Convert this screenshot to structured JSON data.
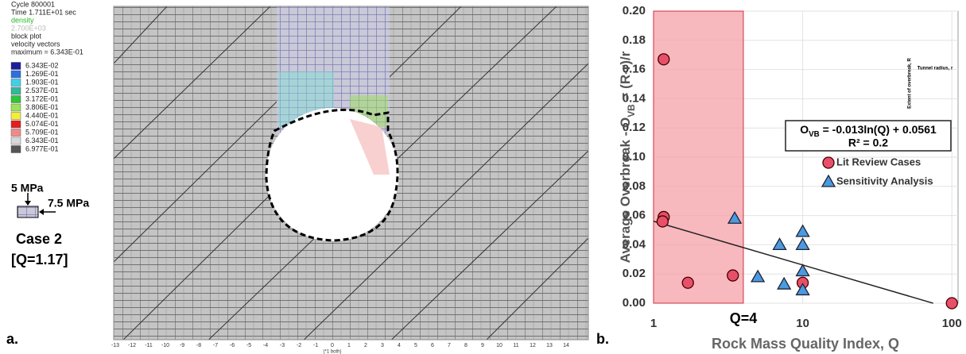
{
  "panel_a": {
    "label": "a.",
    "header": [
      "Cycle  800001",
      "Time  1.711E+01 sec",
      "density",
      "2.700E+03",
      "block plot",
      "velocity vectors",
      "maximum =   6.343E-01"
    ],
    "legend": [
      {
        "label": "6.343E-02",
        "color": "#1c1c9c"
      },
      {
        "label": "1.269E-01",
        "color": "#2f6fe0"
      },
      {
        "label": "1.903E-01",
        "color": "#3fd0e8"
      },
      {
        "label": "2.537E-01",
        "color": "#33b89a"
      },
      {
        "label": "3.172E-01",
        "color": "#2fc43a"
      },
      {
        "label": "3.806E-01",
        "color": "#9ee05a"
      },
      {
        "label": "4.440E-01",
        "color": "#f2ee3a"
      },
      {
        "label": "5.074E-01",
        "color": "#e02020"
      },
      {
        "label": "5.709E-01",
        "color": "#f08a8a"
      },
      {
        "label": "6.343E-01",
        "color": "#d8d8d8"
      },
      {
        "label": "6.977E-01",
        "color": "#555555"
      }
    ],
    "stress_vertical": "5 MPa",
    "stress_horizontal": "7.5 MPa",
    "case": "Case 2",
    "q": "[Q=1.17]",
    "axis_ticks": [
      -13,
      -12,
      -11,
      -10,
      -9,
      -8,
      -7,
      -6,
      -5,
      -4,
      -3,
      -2,
      -1,
      0,
      1,
      2,
      3,
      4,
      5,
      6,
      7,
      8,
      9,
      10,
      11,
      12,
      13,
      14
    ],
    "axis_note": "(*1 both)"
  },
  "chart_data": {
    "type": "scatter",
    "panel_label": "b.",
    "x_label": "Rock Mass Quality Index, Q",
    "y_label": [
      "Average Overbreak - O",
      "VB",
      " = (R-r)/r"
    ],
    "log_x": true,
    "xlim": [
      1,
      110
    ],
    "xticks": [
      1,
      10,
      100
    ],
    "ylim": [
      0,
      0.2
    ],
    "yticks": [
      {
        "value": 0,
        "label": "0.00"
      },
      {
        "value": 0.02,
        "label": "0.02"
      },
      {
        "value": 0.04,
        "label": "0.04"
      },
      {
        "value": 0.06,
        "label": "0.06"
      },
      {
        "value": 0.08,
        "label": "0.08"
      },
      {
        "value": 0.1,
        "label": "0.10"
      },
      {
        "value": 0.12,
        "label": "0.12"
      },
      {
        "value": 0.14,
        "label": "0.14"
      },
      {
        "value": 0.16,
        "label": "0.16"
      },
      {
        "value": 0.18,
        "label": "0.18"
      },
      {
        "value": 0.2,
        "label": "0.20"
      }
    ],
    "grid": true,
    "region": {
      "x": [
        1,
        4
      ],
      "label": "Q=4",
      "color": "#f4a0a8"
    },
    "series": [
      {
        "name": "Lit Review Cases",
        "marker": "circle",
        "color": "#e8506a",
        "x": [
          1.17,
          1.17,
          1.15,
          1.7,
          3.4,
          10,
          100
        ],
        "values": [
          0.167,
          0.059,
          0.056,
          0.014,
          0.019,
          0.014,
          0
        ]
      },
      {
        "name": "Sensitivity Analysis",
        "marker": "triangle",
        "color": "#4a9ae0",
        "x": [
          3.5,
          5,
          7,
          7.5,
          10,
          10,
          10,
          10
        ],
        "values": [
          0.058,
          0.018,
          0.04,
          0.013,
          0.049,
          0.04,
          0.022,
          0.009
        ]
      }
    ],
    "trendline": {
      "slope": -0.013,
      "intercept": 0.0561,
      "x": [
        1,
        75
      ]
    },
    "equation": [
      "O",
      "VB",
      " = -0.013ln(Q) + 0.0561"
    ],
    "r_squared": "R² = 0.2",
    "inset": {
      "overbreak": "Extent of overbreak, R",
      "radius": "Tunnel radius, r"
    }
  }
}
